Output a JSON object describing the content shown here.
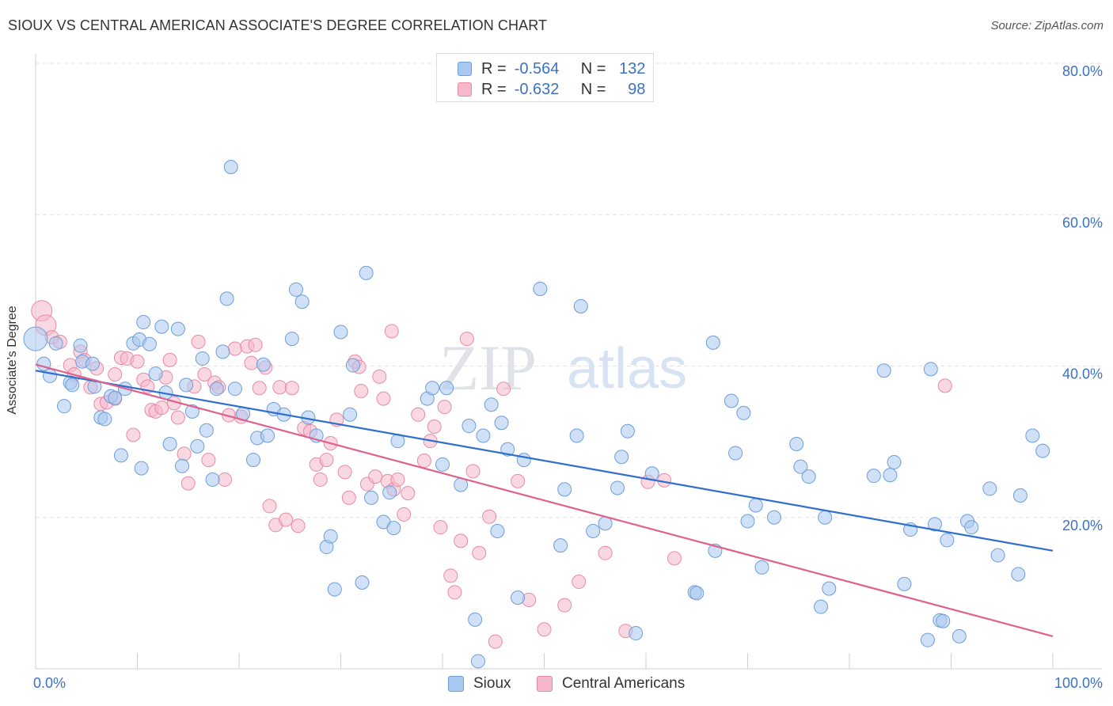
{
  "title": "SIOUX VS CENTRAL AMERICAN ASSOCIATE'S DEGREE CORRELATION CHART",
  "source": "Source: ZipAtlas.com",
  "watermark": {
    "zip": "ZIP",
    "atlas": "atlas"
  },
  "colors": {
    "sioux_fill": "#a9c8f0",
    "sioux_stroke": "#6d9ed8",
    "sioux_line": "#2f6fcc",
    "ca_fill": "#f6b8cb",
    "ca_stroke": "#e88aa8",
    "ca_line": "#e0608c",
    "grid": "#e3e3e3",
    "tick_text": "#3a72c7"
  },
  "legend_top": {
    "rows": [
      {
        "r_label": "R =",
        "r_value": "-0.564",
        "n_label": "N =",
        "n_value": "132"
      },
      {
        "r_label": "R =",
        "r_value": "-0.632",
        "n_label": "N =",
        "n_value": "98"
      }
    ]
  },
  "legend_bottom": [
    "Sioux",
    "Central Americans"
  ],
  "chart_data": {
    "type": "scatter",
    "title": "SIOUX VS CENTRAL AMERICAN ASSOCIATE'S DEGREE CORRELATION CHART",
    "xlabel": "",
    "ylabel": "Associate's Degree",
    "xlim": [
      0,
      100
    ],
    "ylim": [
      0,
      80
    ],
    "x_tick_labels": [
      "0.0%",
      "100.0%"
    ],
    "y_ticks": [
      20,
      40,
      60,
      80
    ],
    "y_tick_labels": [
      "20.0%",
      "40.0%",
      "60.0%",
      "80.0%"
    ],
    "grid": true,
    "legend_position": "top-center",
    "series": [
      {
        "name": "Sioux",
        "stats": {
          "R": -0.564,
          "N": 132
        },
        "trend": {
          "x": [
            0,
            100
          ],
          "y": [
            39.4,
            15.6
          ]
        },
        "points": [
          [
            0,
            43.6
          ],
          [
            0.8,
            40.3
          ],
          [
            1.4,
            38.7
          ],
          [
            2.0,
            43.0
          ],
          [
            2.8,
            34.7
          ],
          [
            3.4,
            37.8
          ],
          [
            3.6,
            37.5
          ],
          [
            4.4,
            42.7
          ],
          [
            4.6,
            40.6
          ],
          [
            5.6,
            40.3
          ],
          [
            5.8,
            37.3
          ],
          [
            6.4,
            33.2
          ],
          [
            6.8,
            33.0
          ],
          [
            7.4,
            36.0
          ],
          [
            7.8,
            35.8
          ],
          [
            8.4,
            28.2
          ],
          [
            8.8,
            37.0
          ],
          [
            9.6,
            43.0
          ],
          [
            10.2,
            43.5
          ],
          [
            10.4,
            26.5
          ],
          [
            10.6,
            45.8
          ],
          [
            11.2,
            42.9
          ],
          [
            11.8,
            39.0
          ],
          [
            12.4,
            45.2
          ],
          [
            12.8,
            36.5
          ],
          [
            13.2,
            29.7
          ],
          [
            14.0,
            44.9
          ],
          [
            14.4,
            26.8
          ],
          [
            14.8,
            37.5
          ],
          [
            15.4,
            34.0
          ],
          [
            15.9,
            29.4
          ],
          [
            16.4,
            41.0
          ],
          [
            16.8,
            31.5
          ],
          [
            17.4,
            25.0
          ],
          [
            17.8,
            37.0
          ],
          [
            18.4,
            41.9
          ],
          [
            18.8,
            48.9
          ],
          [
            19.2,
            66.3
          ],
          [
            19.6,
            37.0
          ],
          [
            20.4,
            33.7
          ],
          [
            21.4,
            27.6
          ],
          [
            21.8,
            30.5
          ],
          [
            22.4,
            40.2
          ],
          [
            22.8,
            30.8
          ],
          [
            23.4,
            34.3
          ],
          [
            24.4,
            33.6
          ],
          [
            25.2,
            43.6
          ],
          [
            25.6,
            50.1
          ],
          [
            26.2,
            48.5
          ],
          [
            26.8,
            33.2
          ],
          [
            27.6,
            30.8
          ],
          [
            28.6,
            16.1
          ],
          [
            29.0,
            17.5
          ],
          [
            29.4,
            10.5
          ],
          [
            30.0,
            44.5
          ],
          [
            30.9,
            33.6
          ],
          [
            31.2,
            40.1
          ],
          [
            32.1,
            11.4
          ],
          [
            32.5,
            52.3
          ],
          [
            33.0,
            22.6
          ],
          [
            34.2,
            19.4
          ],
          [
            34.8,
            23.3
          ],
          [
            35.2,
            18.6
          ],
          [
            35.6,
            30.1
          ],
          [
            38.5,
            35.7
          ],
          [
            39.0,
            37.1
          ],
          [
            40.0,
            27.0
          ],
          [
            40.4,
            37.1
          ],
          [
            41.8,
            24.3
          ],
          [
            42.6,
            32.1
          ],
          [
            43.2,
            6.5
          ],
          [
            44.0,
            30.8
          ],
          [
            44.8,
            34.9
          ],
          [
            45.4,
            18.2
          ],
          [
            45.8,
            32.5
          ],
          [
            46.4,
            29.0
          ],
          [
            47.4,
            9.4
          ],
          [
            48.0,
            27.6
          ],
          [
            49.6,
            50.2
          ],
          [
            51.6,
            16.3
          ],
          [
            52.0,
            23.7
          ],
          [
            53.2,
            30.8
          ],
          [
            53.6,
            47.9
          ],
          [
            54.8,
            18.2
          ],
          [
            56.0,
            19.2
          ],
          [
            57.2,
            23.9
          ],
          [
            57.6,
            28.0
          ],
          [
            58.2,
            31.4
          ],
          [
            59.0,
            4.7
          ],
          [
            60.6,
            25.8
          ],
          [
            64.8,
            10.1
          ],
          [
            65.0,
            10.0
          ],
          [
            66.6,
            43.1
          ],
          [
            66.8,
            15.6
          ],
          [
            68.4,
            35.4
          ],
          [
            68.8,
            28.5
          ],
          [
            69.6,
            33.8
          ],
          [
            70.0,
            19.5
          ],
          [
            70.8,
            21.6
          ],
          [
            71.4,
            13.4
          ],
          [
            72.6,
            20.0
          ],
          [
            74.8,
            29.7
          ],
          [
            75.2,
            26.7
          ],
          [
            76.0,
            25.4
          ],
          [
            77.2,
            8.2
          ],
          [
            77.6,
            20.0
          ],
          [
            78.0,
            10.6
          ],
          [
            82.4,
            25.5
          ],
          [
            83.4,
            39.4
          ],
          [
            84.0,
            25.6
          ],
          [
            84.4,
            27.3
          ],
          [
            85.4,
            11.2
          ],
          [
            86.0,
            18.4
          ],
          [
            87.7,
            3.8
          ],
          [
            88.0,
            39.6
          ],
          [
            88.4,
            19.1
          ],
          [
            88.9,
            6.4
          ],
          [
            89.2,
            6.3
          ],
          [
            89.6,
            17.0
          ],
          [
            90.8,
            4.3
          ],
          [
            91.6,
            19.5
          ],
          [
            92.0,
            18.7
          ],
          [
            93.8,
            23.8
          ],
          [
            94.6,
            15.0
          ],
          [
            96.6,
            12.5
          ],
          [
            96.8,
            22.9
          ],
          [
            98.0,
            30.8
          ],
          [
            99.0,
            28.8
          ],
          [
            43.5,
            1.0
          ]
        ]
      },
      {
        "name": "Central Americans",
        "stats": {
          "R": -0.632,
          "N": 98
        },
        "trend": {
          "x": [
            0,
            100
          ],
          "y": [
            40.2,
            4.3
          ]
        },
        "points": [
          [
            0.6,
            47.3
          ],
          [
            1.0,
            45.4
          ],
          [
            1.6,
            43.8
          ],
          [
            2.4,
            43.2
          ],
          [
            3.4,
            40.1
          ],
          [
            3.8,
            38.9
          ],
          [
            4.4,
            41.9
          ],
          [
            4.8,
            40.8
          ],
          [
            5.4,
            37.2
          ],
          [
            6.0,
            39.7
          ],
          [
            6.4,
            35.0
          ],
          [
            7.0,
            35.2
          ],
          [
            7.8,
            35.7
          ],
          [
            7.8,
            38.9
          ],
          [
            8.4,
            41.1
          ],
          [
            9.0,
            41.0
          ],
          [
            9.6,
            30.9
          ],
          [
            10.0,
            40.6
          ],
          [
            10.6,
            38.2
          ],
          [
            11.0,
            37.3
          ],
          [
            11.4,
            34.2
          ],
          [
            11.8,
            34.0
          ],
          [
            12.4,
            34.5
          ],
          [
            12.8,
            38.5
          ],
          [
            13.2,
            40.8
          ],
          [
            13.6,
            35.1
          ],
          [
            14.0,
            33.2
          ],
          [
            14.6,
            28.4
          ],
          [
            15.0,
            24.5
          ],
          [
            15.6,
            37.3
          ],
          [
            16.0,
            43.2
          ],
          [
            16.6,
            38.9
          ],
          [
            17.0,
            27.6
          ],
          [
            17.6,
            37.8
          ],
          [
            18.0,
            37.2
          ],
          [
            18.6,
            25.0
          ],
          [
            19.0,
            33.5
          ],
          [
            19.6,
            42.3
          ],
          [
            20.2,
            33.3
          ],
          [
            20.8,
            42.6
          ],
          [
            21.2,
            40.4
          ],
          [
            22.0,
            37.1
          ],
          [
            22.6,
            39.8
          ],
          [
            23.0,
            21.5
          ],
          [
            23.6,
            19.0
          ],
          [
            24.0,
            37.2
          ],
          [
            24.6,
            19.7
          ],
          [
            25.2,
            37.1
          ],
          [
            25.8,
            18.9
          ],
          [
            26.4,
            31.8
          ],
          [
            27.0,
            31.4
          ],
          [
            27.6,
            27.0
          ],
          [
            28.0,
            25.0
          ],
          [
            28.6,
            27.6
          ],
          [
            29.0,
            29.8
          ],
          [
            29.6,
            32.9
          ],
          [
            30.4,
            26.0
          ],
          [
            30.8,
            22.6
          ],
          [
            31.4,
            40.6
          ],
          [
            31.8,
            39.9
          ],
          [
            32.0,
            36.7
          ],
          [
            32.6,
            24.4
          ],
          [
            33.4,
            25.4
          ],
          [
            33.8,
            38.6
          ],
          [
            34.2,
            35.7
          ],
          [
            34.6,
            24.8
          ],
          [
            35.2,
            23.7
          ],
          [
            35.6,
            25.0
          ],
          [
            36.2,
            20.4
          ],
          [
            36.6,
            23.2
          ],
          [
            37.6,
            33.6
          ],
          [
            38.2,
            27.5
          ],
          [
            38.8,
            30.1
          ],
          [
            39.2,
            32.0
          ],
          [
            39.8,
            18.7
          ],
          [
            40.2,
            34.6
          ],
          [
            40.8,
            12.3
          ],
          [
            41.2,
            10.1
          ],
          [
            41.8,
            16.9
          ],
          [
            42.4,
            43.6
          ],
          [
            43.0,
            26.1
          ],
          [
            43.6,
            15.3
          ],
          [
            44.6,
            20.1
          ],
          [
            45.2,
            3.6
          ],
          [
            46.0,
            37.0
          ],
          [
            47.4,
            24.8
          ],
          [
            48.5,
            9.1
          ],
          [
            50.0,
            5.2
          ],
          [
            52.0,
            8.4
          ],
          [
            53.4,
            11.5
          ],
          [
            58.0,
            5.0
          ],
          [
            60.2,
            24.7
          ],
          [
            62.8,
            14.6
          ],
          [
            89.4,
            37.4
          ],
          [
            61.8,
            24.9
          ],
          [
            56.0,
            15.3
          ],
          [
            35.0,
            44.6
          ],
          [
            21.6,
            42.8
          ]
        ]
      }
    ]
  }
}
